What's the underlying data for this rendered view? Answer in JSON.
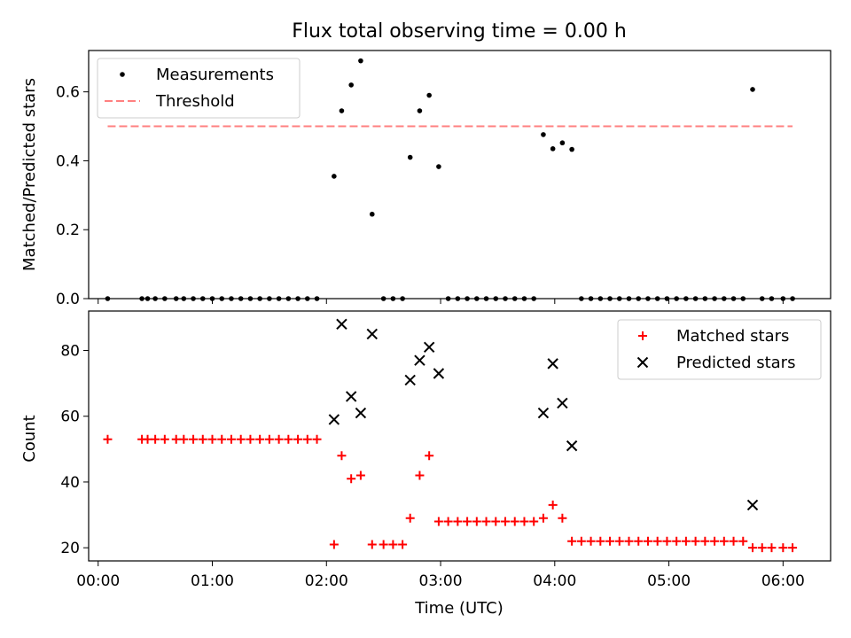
{
  "chart_data": [
    {
      "type": "scatter",
      "title": "Flux total observing time = 0.00 h",
      "ylabel": "Matched/Predicted stars",
      "xlabel": "",
      "xlim": [
        "-00:05",
        "06:25"
      ],
      "ylim": [
        0,
        0.72
      ],
      "grid": false,
      "legend_placement": "top-left",
      "xtick_labels": [
        "00:00",
        "01:00",
        "02:00",
        "03:00",
        "04:00",
        "05:00",
        "06:00"
      ],
      "ytick_values": [
        0.0,
        0.2,
        0.4,
        0.6
      ],
      "ytick_labels": [
        "0.0",
        "0.2",
        "0.4",
        "0.6"
      ],
      "threshold": {
        "name": "Threshold",
        "value": 0.5,
        "x_start": "00:05",
        "x_end": "06:05",
        "color": "#ff8080"
      },
      "series": [
        {
          "name": "Measurements",
          "marker": "dot",
          "color": "#000000",
          "points": [
            [
              "00:05",
              0.0
            ],
            [
              "00:23",
              0.0
            ],
            [
              "00:26",
              0.0
            ],
            [
              "00:30",
              0.0
            ],
            [
              "00:35",
              0.0
            ],
            [
              "00:41",
              0.0
            ],
            [
              "00:45",
              0.0
            ],
            [
              "00:50",
              0.0
            ],
            [
              "00:55",
              0.0
            ],
            [
              "01:00",
              0.0
            ],
            [
              "01:05",
              0.0
            ],
            [
              "01:10",
              0.0
            ],
            [
              "01:15",
              0.0
            ],
            [
              "01:20",
              0.0
            ],
            [
              "01:25",
              0.0
            ],
            [
              "01:30",
              0.0
            ],
            [
              "01:35",
              0.0
            ],
            [
              "01:40",
              0.0
            ],
            [
              "01:45",
              0.0
            ],
            [
              "01:50",
              0.0
            ],
            [
              "01:55",
              0.0
            ],
            [
              "02:04",
              0.355
            ],
            [
              "02:08",
              0.545
            ],
            [
              "02:13",
              0.62
            ],
            [
              "02:18",
              0.69
            ],
            [
              "02:24",
              0.245
            ],
            [
              "02:30",
              0.0
            ],
            [
              "02:35",
              0.0
            ],
            [
              "02:40",
              0.0
            ],
            [
              "02:44",
              0.41
            ],
            [
              "02:49",
              0.545
            ],
            [
              "02:54",
              0.59
            ],
            [
              "02:59",
              0.383
            ],
            [
              "03:04",
              0.0
            ],
            [
              "03:09",
              0.0
            ],
            [
              "03:14",
              0.0
            ],
            [
              "03:19",
              0.0
            ],
            [
              "03:24",
              0.0
            ],
            [
              "03:29",
              0.0
            ],
            [
              "03:34",
              0.0
            ],
            [
              "03:39",
              0.0
            ],
            [
              "03:44",
              0.0
            ],
            [
              "03:49",
              0.0
            ],
            [
              "03:54",
              0.476
            ],
            [
              "03:59",
              0.435
            ],
            [
              "04:04",
              0.452
            ],
            [
              "04:09",
              0.433
            ],
            [
              "04:14",
              0.0
            ],
            [
              "04:19",
              0.0
            ],
            [
              "04:24",
              0.0
            ],
            [
              "04:29",
              0.0
            ],
            [
              "04:34",
              0.0
            ],
            [
              "04:39",
              0.0
            ],
            [
              "04:44",
              0.0
            ],
            [
              "04:49",
              0.0
            ],
            [
              "04:54",
              0.0
            ],
            [
              "04:59",
              0.0
            ],
            [
              "05:04",
              0.0
            ],
            [
              "05:09",
              0.0
            ],
            [
              "05:14",
              0.0
            ],
            [
              "05:19",
              0.0
            ],
            [
              "05:24",
              0.0
            ],
            [
              "05:29",
              0.0
            ],
            [
              "05:34",
              0.0
            ],
            [
              "05:39",
              0.0
            ],
            [
              "05:44",
              0.607
            ],
            [
              "05:49",
              0.0
            ],
            [
              "05:54",
              0.0
            ],
            [
              "06:00",
              0.0
            ],
            [
              "06:05",
              0.0
            ]
          ]
        }
      ]
    },
    {
      "type": "scatter",
      "title": "",
      "ylabel": "Count",
      "xlabel": "Time (UTC)",
      "xlim": [
        "-00:05",
        "06:25"
      ],
      "ylim": [
        16,
        92
      ],
      "grid": false,
      "legend_placement": "top-right",
      "xtick_labels": [
        "00:00",
        "01:00",
        "02:00",
        "03:00",
        "04:00",
        "05:00",
        "06:00"
      ],
      "ytick_values": [
        20,
        40,
        60,
        80
      ],
      "ytick_labels": [
        "20",
        "40",
        "60",
        "80"
      ],
      "series": [
        {
          "name": "Matched stars",
          "marker": "plus",
          "color": "#ff0000",
          "points": [
            [
              "00:05",
              53
            ],
            [
              "00:23",
              53
            ],
            [
              "00:26",
              53
            ],
            [
              "00:30",
              53
            ],
            [
              "00:35",
              53
            ],
            [
              "00:41",
              53
            ],
            [
              "00:45",
              53
            ],
            [
              "00:50",
              53
            ],
            [
              "00:55",
              53
            ],
            [
              "01:00",
              53
            ],
            [
              "01:05",
              53
            ],
            [
              "01:10",
              53
            ],
            [
              "01:15",
              53
            ],
            [
              "01:20",
              53
            ],
            [
              "01:25",
              53
            ],
            [
              "01:30",
              53
            ],
            [
              "01:35",
              53
            ],
            [
              "01:40",
              53
            ],
            [
              "01:45",
              53
            ],
            [
              "01:50",
              53
            ],
            [
              "01:55",
              53
            ],
            [
              "02:04",
              21
            ],
            [
              "02:08",
              48
            ],
            [
              "02:13",
              41
            ],
            [
              "02:18",
              42
            ],
            [
              "02:24",
              21
            ],
            [
              "02:30",
              21
            ],
            [
              "02:35",
              21
            ],
            [
              "02:40",
              21
            ],
            [
              "02:44",
              29
            ],
            [
              "02:49",
              42
            ],
            [
              "02:54",
              48
            ],
            [
              "02:59",
              28
            ],
            [
              "03:04",
              28
            ],
            [
              "03:09",
              28
            ],
            [
              "03:14",
              28
            ],
            [
              "03:19",
              28
            ],
            [
              "03:24",
              28
            ],
            [
              "03:29",
              28
            ],
            [
              "03:34",
              28
            ],
            [
              "03:39",
              28
            ],
            [
              "03:44",
              28
            ],
            [
              "03:49",
              28
            ],
            [
              "03:54",
              29
            ],
            [
              "03:59",
              33
            ],
            [
              "04:04",
              29
            ],
            [
              "04:09",
              22
            ],
            [
              "04:14",
              22
            ],
            [
              "04:19",
              22
            ],
            [
              "04:24",
              22
            ],
            [
              "04:29",
              22
            ],
            [
              "04:34",
              22
            ],
            [
              "04:39",
              22
            ],
            [
              "04:44",
              22
            ],
            [
              "04:49",
              22
            ],
            [
              "04:54",
              22
            ],
            [
              "04:59",
              22
            ],
            [
              "05:04",
              22
            ],
            [
              "05:09",
              22
            ],
            [
              "05:14",
              22
            ],
            [
              "05:19",
              22
            ],
            [
              "05:24",
              22
            ],
            [
              "05:29",
              22
            ],
            [
              "05:34",
              22
            ],
            [
              "05:39",
              22
            ],
            [
              "05:44",
              20
            ],
            [
              "05:49",
              20
            ],
            [
              "05:54",
              20
            ],
            [
              "06:00",
              20
            ],
            [
              "06:05",
              20
            ]
          ]
        },
        {
          "name": "Predicted stars",
          "marker": "x",
          "color": "#000000",
          "points": [
            [
              "02:04",
              59
            ],
            [
              "02:08",
              88
            ],
            [
              "02:13",
              66
            ],
            [
              "02:18",
              61
            ],
            [
              "02:24",
              85
            ],
            [
              "02:44",
              71
            ],
            [
              "02:49",
              77
            ],
            [
              "02:54",
              81
            ],
            [
              "02:59",
              73
            ],
            [
              "03:54",
              61
            ],
            [
              "03:59",
              76
            ],
            [
              "04:04",
              64
            ],
            [
              "04:09",
              51
            ],
            [
              "05:44",
              33
            ]
          ]
        }
      ]
    }
  ]
}
